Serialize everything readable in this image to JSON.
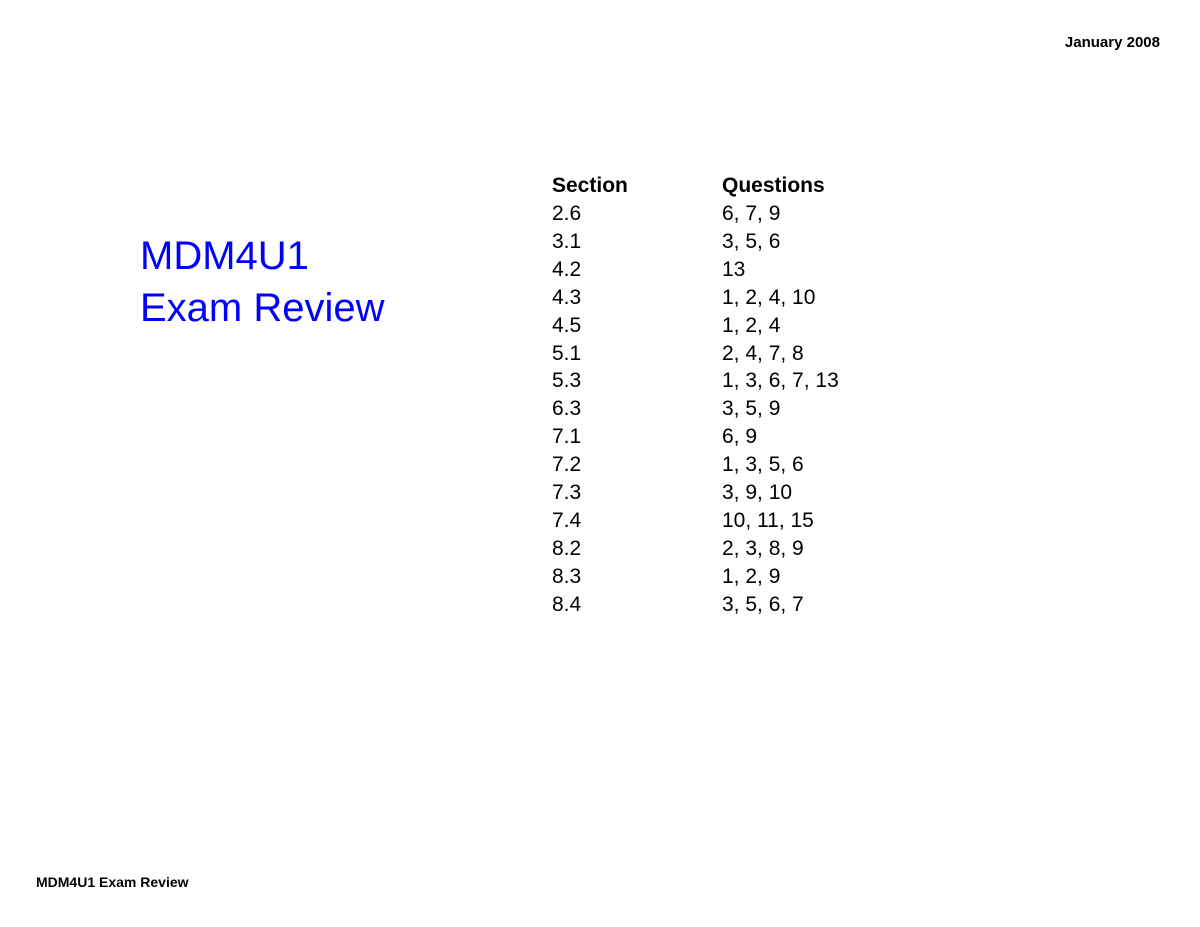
{
  "header": {
    "date": "January 2008"
  },
  "title": {
    "line1": "MDM4U1",
    "line2": "Exam Review"
  },
  "table": {
    "columns": [
      "Section",
      "Questions"
    ],
    "rows": [
      [
        "2.6",
        "6, 7, 9"
      ],
      [
        "3.1",
        "3, 5, 6"
      ],
      [
        "4.2",
        "13"
      ],
      [
        "4.3",
        "1, 2, 4, 10"
      ],
      [
        "4.5",
        "1, 2, 4"
      ],
      [
        "5.1",
        "2, 4, 7, 8"
      ],
      [
        "5.3",
        "1, 3, 6, 7, 13"
      ],
      [
        "6.3",
        "3, 5, 9"
      ],
      [
        "7.1",
        "6, 9"
      ],
      [
        "7.2",
        "1, 3, 5, 6"
      ],
      [
        "7.3",
        "3, 9, 10"
      ],
      [
        "7.4",
        "10, 11, 15"
      ],
      [
        "8.2",
        "2, 3, 8, 9"
      ],
      [
        "8.3",
        "1, 2, 9"
      ],
      [
        "8.4",
        "3, 5, 6, 7"
      ]
    ]
  },
  "footer": {
    "text": "MDM4U1 Exam Review"
  },
  "styling": {
    "background_color": "#ffffff",
    "title_color": "#0000ff",
    "text_color": "#000000",
    "title_fontsize": 40,
    "body_fontsize": 21,
    "header_fontsize": 15,
    "footer_fontsize": 14,
    "font_family": "Arial"
  }
}
